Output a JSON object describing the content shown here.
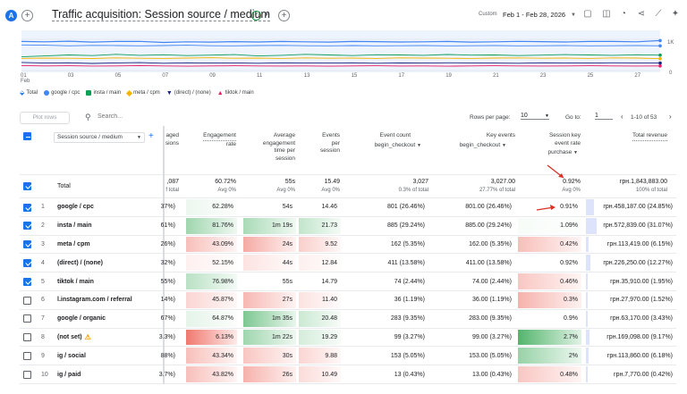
{
  "header": {
    "avatar": "A",
    "add": "+",
    "title": "Traffic acquisition: Session source / medium",
    "status_icon": "check-circle-icon",
    "add_comparison": "+",
    "date_label": "Custom",
    "date_range": "Feb 1 - Feb 28, 2026"
  },
  "chart": {
    "y_ticks": [
      "1K",
      "0"
    ],
    "x_ticks": [
      "01",
      "03",
      "05",
      "07",
      "09",
      "11",
      "13",
      "15",
      "17",
      "19",
      "21",
      "23",
      "25",
      "27"
    ],
    "x_sub": "Feb",
    "legend": [
      {
        "label": "Total",
        "color": "#1a73e8",
        "icon": "total-icon"
      },
      {
        "label": "google / cpc",
        "color": "#4285f4"
      },
      {
        "label": "insta / main",
        "color": "#0f9d58"
      },
      {
        "label": "meta / cpm",
        "color": "#f4b400"
      },
      {
        "label": "(direct) / (none)",
        "color": "#1a237e"
      },
      {
        "label": "tiktok / main",
        "color": "#e91e63"
      }
    ]
  },
  "chart_data": {
    "type": "line",
    "x": [
      "01",
      "02",
      "03",
      "04",
      "05",
      "06",
      "07",
      "08",
      "09",
      "10",
      "11",
      "12",
      "13",
      "14",
      "15",
      "16",
      "17",
      "18",
      "19",
      "20",
      "21",
      "22",
      "23",
      "24",
      "25",
      "26",
      "27",
      "28"
    ],
    "ylim": [
      0,
      1000
    ],
    "series": [
      {
        "name": "Total",
        "values": [
          930,
          920,
          940,
          910,
          930,
          935,
          900,
          920,
          910,
          925,
          915,
          930,
          920,
          910,
          930,
          925,
          915,
          920,
          930,
          910,
          920,
          935,
          925,
          915,
          930,
          930,
          920,
          960
        ]
      },
      {
        "name": "google / cpc",
        "values": [
          820,
          810,
          790,
          805,
          800,
          790,
          800,
          810,
          795,
          790,
          800,
          805,
          795,
          790,
          800,
          790,
          795,
          800,
          790,
          795,
          800,
          790,
          795,
          800,
          790,
          795,
          800,
          790
        ]
      },
      {
        "name": "insta / main",
        "values": [
          440,
          470,
          500,
          480,
          520,
          490,
          505,
          480,
          495,
          510,
          470,
          490,
          520,
          500,
          480,
          505,
          500,
          490,
          515,
          495,
          500,
          480,
          495,
          510,
          500,
          490,
          505,
          495
        ]
      },
      {
        "name": "meta / cpm",
        "values": [
          390,
          400,
          395,
          385,
          405,
          395,
          390,
          400,
          410,
          395,
          400,
          390,
          405,
          395,
          400,
          390,
          405,
          400,
          395,
          390,
          400,
          405,
          395,
          400,
          390,
          405,
          400,
          380
        ]
      },
      {
        "name": "(direct) / (none)",
        "values": [
          260,
          240,
          250,
          230,
          245,
          255,
          235,
          250,
          240,
          245,
          235,
          250,
          245,
          240,
          250,
          235,
          245,
          240,
          250,
          245,
          240,
          235,
          250,
          245,
          240,
          250,
          245,
          240
        ]
      },
      {
        "name": "tiktok / main",
        "values": [
          160,
          150,
          155,
          145,
          150,
          160,
          150,
          140,
          150,
          155,
          150,
          145,
          150,
          140,
          150,
          155,
          145,
          150,
          140,
          150,
          155,
          150,
          145,
          150,
          155,
          150,
          145,
          150
        ]
      }
    ]
  },
  "toolbar": {
    "plot_rows": "Plot rows",
    "search_placeholder": "Search...",
    "rows_per_page_label": "Rows per page:",
    "rows_per_page": "10",
    "goto_label": "Go to:",
    "goto_value": "1",
    "pagination": "1-10 of 53"
  },
  "table": {
    "dimension_label": "Session source / medium",
    "headers": {
      "engaged": [
        "aged",
        "sions"
      ],
      "eng_rate": [
        "Engagement",
        "rate"
      ],
      "avg_time": [
        "Average",
        "engagement",
        "time per",
        "session"
      ],
      "events_per": [
        "Events",
        "per",
        "session"
      ],
      "event_count": [
        "Event count"
      ],
      "event_count_filter": "begin_checkout",
      "key_events": [
        "Key events"
      ],
      "key_events_filter": "begin_checkout",
      "key_rate": [
        "Session key",
        "event rate"
      ],
      "key_rate_filter": "purchase",
      "revenue": [
        "Total revenue"
      ]
    },
    "total": {
      "label": "Total",
      "engaged": ",087",
      "engaged_sub": "f total",
      "eng_rate": "60.72%",
      "eng_rate_sub": "Avg 0%",
      "avg_time": "55s",
      "avg_time_sub": "Avg 0%",
      "events_per": "15.49",
      "events_per_sub": "Avg 0%",
      "event_count": "3,027",
      "event_count_sub": "0.3% of total",
      "key_events": "3,027.00",
      "key_events_sub": "27.77% of total",
      "key_rate": "0.92%",
      "key_rate_sub": "Avg 0%",
      "revenue": "грн.1,843,883.00",
      "revenue_sub": "100% of total"
    },
    "rows": [
      {
        "n": "1",
        "name": "google / cpc",
        "checked": true,
        "engaged": "37%)",
        "eng_rate": "62.28%",
        "avg_time": "54s",
        "events_per": "14.46",
        "event_count": "801 (26.46%)",
        "key_events": "801.00 (26.46%)",
        "key_rate": "0.91%",
        "revenue": "грн.458,187.00 (24.85%)"
      },
      {
        "n": "2",
        "name": "insta / main",
        "checked": true,
        "engaged": "61%)",
        "eng_rate": "81.76%",
        "avg_time": "1m 19s",
        "events_per": "21.73",
        "event_count": "885 (29.24%)",
        "key_events": "885.00 (29.24%)",
        "key_rate": "1.09%",
        "revenue": "грн.572,839.00 (31.07%)"
      },
      {
        "n": "3",
        "name": "meta / cpm",
        "checked": true,
        "engaged": "26%)",
        "eng_rate": "43.09%",
        "avg_time": "24s",
        "events_per": "9.52",
        "event_count": "162 (5.35%)",
        "key_events": "162.00 (5.35%)",
        "key_rate": "0.42%",
        "revenue": "грн.113,419.00 (6.15%)"
      },
      {
        "n": "4",
        "name": "(direct) / (none)",
        "checked": true,
        "engaged": "32%)",
        "eng_rate": "52.15%",
        "avg_time": "44s",
        "events_per": "12.84",
        "event_count": "411 (13.58%)",
        "key_events": "411.00 (13.58%)",
        "key_rate": "0.92%",
        "revenue": "грн.226,250.00 (12.27%)"
      },
      {
        "n": "5",
        "name": "tiktok / main",
        "checked": true,
        "engaged": "55%)",
        "eng_rate": "76.98%",
        "avg_time": "55s",
        "events_per": "14.79",
        "event_count": "74 (2.44%)",
        "key_events": "74.00 (2.44%)",
        "key_rate": "0.46%",
        "revenue": "грн.35,910.00 (1.95%)"
      },
      {
        "n": "6",
        "name": "l.instagram.com / referral",
        "checked": false,
        "engaged": "14%)",
        "eng_rate": "45.87%",
        "avg_time": "27s",
        "events_per": "11.40",
        "event_count": "36 (1.19%)",
        "key_events": "36.00 (1.19%)",
        "key_rate": "0.3%",
        "revenue": "грн.27,970.00 (1.52%)"
      },
      {
        "n": "7",
        "name": "google / organic",
        "checked": false,
        "engaged": "67%)",
        "eng_rate": "64.87%",
        "avg_time": "1m 35s",
        "events_per": "20.48",
        "event_count": "283 (9.35%)",
        "key_events": "283.00 (9.35%)",
        "key_rate": "0.9%",
        "revenue": "грн.63,170.00 (3.43%)"
      },
      {
        "n": "8",
        "name": "(not set)",
        "checked": false,
        "warn": true,
        "engaged": "3.3%)",
        "eng_rate": "6.13%",
        "avg_time": "1m 22s",
        "events_per": "19.29",
        "event_count": "99 (3.27%)",
        "key_events": "99.00 (3.27%)",
        "key_rate": "2.7%",
        "revenue": "грн.169,098.00 (9.17%)"
      },
      {
        "n": "9",
        "name": "ig / social",
        "checked": false,
        "engaged": "88%)",
        "eng_rate": "43.34%",
        "avg_time": "30s",
        "events_per": "9.88",
        "event_count": "153 (5.05%)",
        "key_events": "153.00 (5.05%)",
        "key_rate": "2%",
        "revenue": "грн.113,860.00 (6.18%)"
      },
      {
        "n": "10",
        "name": "ig / paid",
        "checked": false,
        "engaged": "3.7%)",
        "eng_rate": "43.82%",
        "avg_time": "26s",
        "events_per": "10.49",
        "event_count": "13 (0.43%)",
        "key_events": "13.00 (0.43%)",
        "key_rate": "0.48%",
        "revenue": "грн.7,770.00 (0.42%)"
      }
    ],
    "heat": {
      "eng_rate": [
        0.1,
        0.55,
        -0.45,
        -0.1,
        0.4,
        -0.3,
        0.15,
        -0.95,
        -0.45,
        -0.45
      ],
      "avg_time": [
        0,
        0.5,
        -0.6,
        -0.2,
        0,
        -0.5,
        0.75,
        0.55,
        -0.4,
        -0.55
      ],
      "events_per": [
        0,
        0.35,
        -0.35,
        -0.1,
        0,
        -0.2,
        0.3,
        0.25,
        -0.3,
        -0.25
      ],
      "key_rate": [
        0,
        0.05,
        -0.45,
        0,
        -0.4,
        -0.55,
        0,
        1.0,
        0.6,
        -0.4
      ],
      "revenue": [
        0.42,
        0.55,
        0.12,
        0.22,
        0.05,
        0.04,
        0.08,
        0.16,
        0.12,
        0.01
      ]
    }
  }
}
